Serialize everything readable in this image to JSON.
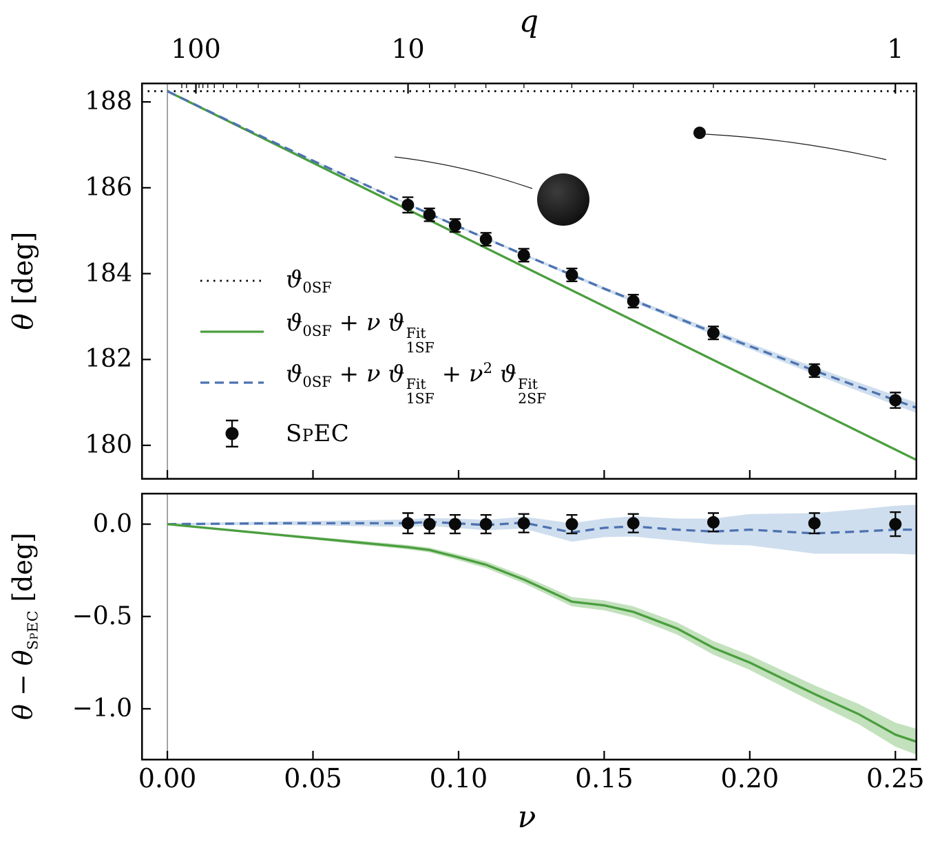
{
  "axes": {
    "q_title": "q",
    "nu_title": "ν"
  },
  "colors": {
    "black": "#000000",
    "green": "#4a9e3e",
    "blue": "#4c72b0",
    "green_band": "#86c47a",
    "blue_band": "#9fbedd",
    "point": "#0a0a0a",
    "zero_line": "#2b2b2b"
  },
  "ylabels": {
    "top_tokens": [
      {
        "i": "θ"
      },
      {
        "t": " [deg]"
      }
    ],
    "bottom_tokens": [
      {
        "i": "θ"
      },
      {
        "t": " − "
      },
      {
        "i": "θ"
      },
      {
        "subsc": "SpEC"
      },
      {
        "t": " [deg]"
      }
    ]
  },
  "legend": {
    "entries": [
      {
        "sample": "dotted-black",
        "tokens": [
          {
            "i": "ϑ"
          },
          {
            "sub": "0SF"
          }
        ]
      },
      {
        "sample": "solid-green",
        "tokens": [
          {
            "i": "ϑ"
          },
          {
            "sub": "0SF"
          },
          {
            "t": " + "
          },
          {
            "i": "ν"
          },
          {
            "t": " "
          },
          {
            "i": "ϑ"
          },
          {
            "ss": [
              "1SF",
              "Fit"
            ]
          }
        ]
      },
      {
        "sample": "dashed-blue",
        "tokens": [
          {
            "i": "ϑ"
          },
          {
            "sub": "0SF"
          },
          {
            "t": " + "
          },
          {
            "i": "ν"
          },
          {
            "t": " "
          },
          {
            "i": "ϑ"
          },
          {
            "ss": [
              "1SF",
              "Fit"
            ]
          },
          {
            "t": " + "
          },
          {
            "i": "ν"
          },
          {
            "sup": "2"
          },
          {
            "t": " "
          },
          {
            "i": "ϑ"
          },
          {
            "ss": [
              "2SF",
              "Fit"
            ]
          }
        ]
      },
      {
        "sample": "spec-marker",
        "tokens": [
          {
            "sc": "SpEC"
          }
        ]
      }
    ]
  },
  "chart_data": [
    {
      "type": "line",
      "panel": "top",
      "title": "",
      "xlabel": "ν",
      "ylabel": "θ [deg]",
      "xlim": [
        -0.009,
        0.2575
      ],
      "ylim": [
        179.2,
        188.45
      ],
      "x_ticks": [
        0.0,
        0.05,
        0.1,
        0.15,
        0.2,
        0.25
      ],
      "x_tick_labels": [
        "0.00",
        "0.05",
        "0.10",
        "0.15",
        "0.20",
        "0.25"
      ],
      "y_ticks": [
        180,
        182,
        184,
        186,
        188
      ],
      "y_tick_labels": [
        "180",
        "182",
        "184",
        "186",
        "188"
      ],
      "top_axis": {
        "label": "q",
        "major": [
          {
            "q": 100,
            "label": "100"
          },
          {
            "q": 10,
            "label": "10"
          },
          {
            "q": 1,
            "label": "1"
          }
        ],
        "minor_q": [
          200,
          150,
          90,
          80,
          70,
          60,
          50,
          40,
          30,
          20,
          9,
          8,
          7,
          6,
          5,
          4,
          3,
          2
        ]
      },
      "series": [
        {
          "name": "theta-0SF",
          "style": "dotted",
          "color": "black",
          "x": [
            -0.009,
            0.2575
          ],
          "y": [
            188.25,
            188.25
          ]
        },
        {
          "name": "theta-0SF-plus-nu-1SF",
          "style": "solid",
          "color": "green",
          "x": [
            0.0,
            0.2575
          ],
          "y": [
            188.25,
            179.65
          ]
        },
        {
          "name": "theta-0SF-1SF-2SF",
          "style": "dashed",
          "color": "blue",
          "x": [
            0.0,
            0.025,
            0.05,
            0.075,
            0.0826,
            0.09,
            0.0988,
            0.1094,
            0.1224,
            0.1389,
            0.15,
            0.16,
            0.175,
            0.1875,
            0.2,
            0.2222,
            0.2375,
            0.25,
            0.2575
          ],
          "y": [
            188.25,
            187.43,
            186.63,
            185.85,
            185.62,
            185.39,
            185.13,
            184.82,
            184.44,
            183.97,
            183.65,
            183.38,
            182.97,
            182.63,
            182.31,
            181.74,
            181.36,
            181.05,
            180.87
          ],
          "band": [
            0.0,
            0.01,
            0.015,
            0.02,
            0.02,
            0.022,
            0.025,
            0.028,
            0.032,
            0.036,
            0.04,
            0.045,
            0.052,
            0.06,
            0.068,
            0.085,
            0.1,
            0.115,
            0.12
          ]
        }
      ],
      "points": {
        "name": "SpEC",
        "x": [
          0.0826,
          0.09,
          0.0988,
          0.1094,
          0.1224,
          0.1389,
          0.16,
          0.1875,
          0.2222,
          0.25
        ],
        "y": [
          185.6,
          185.37,
          185.12,
          184.8,
          184.43,
          183.97,
          183.36,
          182.62,
          181.74,
          181.05
        ],
        "yerr": [
          0.18,
          0.15,
          0.15,
          0.15,
          0.15,
          0.15,
          0.15,
          0.15,
          0.15,
          0.18
        ]
      }
    },
    {
      "type": "line",
      "panel": "bottom",
      "title": "",
      "xlabel": "ν",
      "ylabel": "θ − θ_SpEC [deg]",
      "xlim": [
        -0.009,
        0.2575
      ],
      "ylim": [
        -1.28,
        0.17
      ],
      "x_ticks": [
        0.0,
        0.05,
        0.1,
        0.15,
        0.2,
        0.25
      ],
      "x_tick_labels": [
        "0.00",
        "0.05",
        "0.10",
        "0.15",
        "0.20",
        "0.25"
      ],
      "y_ticks": [
        0.0,
        -0.5,
        -1.0
      ],
      "y_tick_labels": [
        "0.0",
        "−0.5",
        "−1.0"
      ],
      "series": [
        {
          "name": "residual-2SF",
          "style": "dashed",
          "color": "blue",
          "x": [
            0.0,
            0.04,
            0.0826,
            0.09,
            0.0988,
            0.1094,
            0.1224,
            0.1389,
            0.15,
            0.16,
            0.175,
            0.1875,
            0.2,
            0.2222,
            0.2375,
            0.25,
            0.2575
          ],
          "y": [
            0.0,
            0.005,
            0.005,
            0.012,
            0.005,
            -0.005,
            0.008,
            -0.045,
            -0.02,
            -0.012,
            -0.03,
            -0.04,
            -0.03,
            -0.05,
            -0.04,
            -0.03,
            -0.03
          ],
          "band": [
            0.005,
            0.01,
            0.02,
            0.022,
            0.025,
            0.028,
            0.032,
            0.05,
            0.05,
            0.055,
            0.06,
            0.07,
            0.085,
            0.11,
            0.12,
            0.13,
            0.135
          ]
        },
        {
          "name": "residual-1SF",
          "style": "solid",
          "color": "green",
          "x": [
            0.0,
            0.0826,
            0.09,
            0.0988,
            0.1094,
            0.1224,
            0.1389,
            0.15,
            0.16,
            0.175,
            0.1875,
            0.2,
            0.2222,
            0.2375,
            0.25,
            0.2575
          ],
          "y": [
            0.0,
            -0.125,
            -0.14,
            -0.175,
            -0.22,
            -0.3,
            -0.42,
            -0.44,
            -0.475,
            -0.565,
            -0.67,
            -0.75,
            -0.92,
            -1.03,
            -1.14,
            -1.18
          ],
          "band": [
            0.003,
            0.012,
            0.013,
            0.015,
            0.018,
            0.02,
            0.025,
            0.027,
            0.03,
            0.033,
            0.037,
            0.04,
            0.047,
            0.055,
            0.065,
            0.07
          ]
        }
      ],
      "points": {
        "name": "SpEC",
        "x": [
          0.0826,
          0.09,
          0.0988,
          0.1094,
          0.1224,
          0.1389,
          0.16,
          0.1875,
          0.2222,
          0.25
        ],
        "y": [
          0.005,
          0.0,
          0.0,
          0.0,
          0.005,
          0.0,
          0.005,
          0.01,
          0.005,
          0.0
        ],
        "yerr": [
          0.055,
          0.05,
          0.05,
          0.05,
          0.05,
          0.05,
          0.05,
          0.05,
          0.055,
          0.065
        ]
      }
    }
  ]
}
